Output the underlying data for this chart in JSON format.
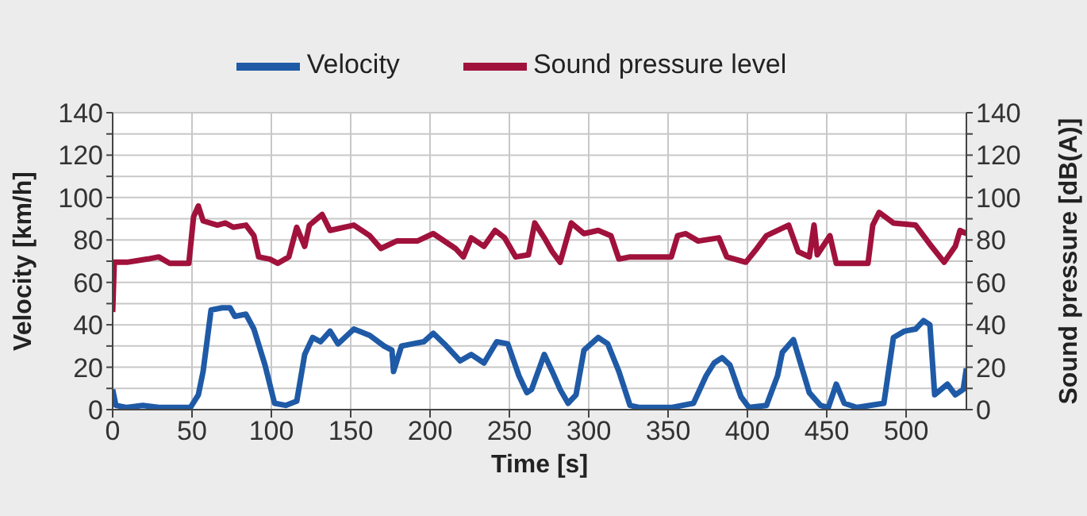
{
  "chart_data": {
    "type": "line",
    "xlabel": "Time [s]",
    "ylabel": "Velocity [km/h]",
    "y2label": "Sound pressure [dB(A)]",
    "xlim": [
      0,
      538
    ],
    "xticks": [
      0,
      50,
      100,
      150,
      200,
      250,
      300,
      350,
      400,
      450,
      500
    ],
    "ylim": [
      0,
      140
    ],
    "yticks": [
      0,
      {
        "value": 10,
        "label": null
      },
      20,
      {
        "value": 30,
        "label": null
      },
      40,
      {
        "value": 50,
        "label": null
      },
      60,
      {
        "value": 70,
        "label": null
      },
      80,
      {
        "value": 90,
        "label": null
      },
      100,
      {
        "value": 110,
        "label": null
      },
      120,
      {
        "value": 130,
        "label": null
      },
      140
    ],
    "y2lim": [
      0,
      140
    ],
    "y2ticks": [
      0,
      {
        "value": 10,
        "label": null
      },
      20,
      {
        "value": 30,
        "label": null
      },
      40,
      {
        "value": 50,
        "label": null
      },
      60,
      {
        "value": 70,
        "label": null
      },
      80,
      {
        "value": 90,
        "label": null
      },
      100,
      {
        "value": 110,
        "label": null
      },
      120,
      {
        "value": 130,
        "label": null
      },
      140
    ],
    "grid": true,
    "legend": "top",
    "marker": "none",
    "line_style": "solid",
    "series": [
      {
        "name": "Velocity",
        "color": "#1f5aa6",
        "x": [
          0,
          2,
          9,
          19,
          29,
          49,
          54,
          57,
          62,
          69,
          74,
          77,
          84,
          89,
          96,
          102,
          109,
          116,
          121,
          126,
          131,
          137,
          142,
          152,
          162,
          171,
          176,
          177,
          182,
          189,
          196,
          202,
          209,
          219,
          226,
          234,
          242,
          249,
          256,
          261,
          264,
          272,
          277,
          282,
          287,
          292,
          297,
          306,
          312,
          319,
          326,
          332,
          352,
          366,
          374,
          379,
          384,
          389,
          396,
          401,
          412,
          419,
          422,
          429,
          439,
          446,
          451,
          456,
          461,
          469,
          486,
          492,
          499,
          506,
          511,
          515,
          518,
          526,
          531,
          536,
          538
        ],
        "values": [
          9.5,
          2,
          1,
          2,
          1,
          1,
          7,
          18,
          47,
          48,
          48,
          44,
          45,
          38,
          21,
          3,
          2,
          4,
          26,
          34,
          32,
          37,
          31,
          38,
          35,
          30,
          28,
          18,
          30,
          31,
          32,
          36,
          31,
          23,
          26,
          22,
          32,
          31,
          16,
          8,
          9.5,
          26,
          18,
          9.5,
          3,
          7,
          28,
          34,
          31,
          18,
          2,
          1,
          1,
          3,
          16,
          22,
          24.5,
          21,
          6,
          1,
          2,
          16,
          27,
          33,
          8,
          2,
          1,
          12,
          3,
          1,
          3,
          34,
          37,
          38,
          42,
          40,
          7,
          12,
          7,
          9.5,
          19.5
        ]
      },
      {
        "name": "Sound pressure level",
        "color": "#a0123c",
        "axis": "y2",
        "x": [
          0,
          1,
          9,
          22,
          29,
          36,
          48,
          51,
          54,
          57,
          66,
          71,
          76,
          84,
          89,
          92,
          99,
          104,
          111,
          116,
          121,
          124,
          132,
          137,
          152,
          162,
          169,
          179,
          192,
          202,
          216,
          221,
          226,
          234,
          241,
          247,
          254,
          262,
          266,
          272,
          277,
          282,
          289,
          297,
          306,
          314,
          319,
          326,
          352,
          356,
          361,
          369,
          382,
          387,
          399,
          406,
          412,
          426,
          432,
          439,
          442,
          444,
          452,
          456,
          476,
          479,
          483,
          492,
          506,
          516,
          524,
          531,
          534,
          538
        ],
        "values": [
          46,
          69.5,
          69.5,
          71,
          72,
          69,
          69,
          91,
          96,
          89,
          87,
          88,
          86,
          87,
          82,
          72,
          71,
          69,
          72,
          86,
          77,
          87,
          92,
          84.5,
          87,
          82,
          76,
          79.5,
          79.5,
          83,
          76,
          72,
          81,
          77,
          84.5,
          81,
          72,
          73,
          88,
          81,
          74.5,
          69.5,
          88,
          83,
          84.5,
          82,
          71,
          72,
          72,
          82,
          83,
          79.5,
          81,
          72,
          69.5,
          76,
          82,
          87,
          74.5,
          72,
          87,
          73,
          82,
          69,
          69,
          87,
          93,
          88,
          87,
          77,
          69.5,
          77,
          84.5,
          83
        ]
      }
    ]
  }
}
